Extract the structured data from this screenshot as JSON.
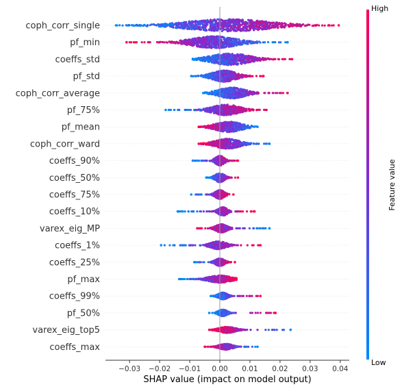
{
  "chart_data": {
    "type": "scatter",
    "subtype": "shap-beeswarm-summary",
    "xlabel": "SHAP value (impact on model output)",
    "xlim": [
      -0.038,
      0.043
    ],
    "xticks": [
      -0.03,
      -0.02,
      -0.01,
      0.0,
      0.01,
      0.02,
      0.03,
      0.04
    ],
    "xtick_labels": [
      "−0.03",
      "−0.02",
      "−0.01",
      "0.00",
      "0.01",
      "0.02",
      "0.03",
      "0.04"
    ],
    "features": [
      {
        "name": "coph_corr_single",
        "min": -0.0345,
        "max": 0.0395,
        "dense_low": -0.016,
        "dense_high": 0.021,
        "trend": "positive"
      },
      {
        "name": "pf_min",
        "min": -0.031,
        "max": 0.0225,
        "dense_low": -0.012,
        "dense_high": 0.008,
        "trend": "negative"
      },
      {
        "name": "coeffs_std",
        "min": -0.009,
        "max": 0.024,
        "dense_low": -0.005,
        "dense_high": 0.012,
        "trend": "positive"
      },
      {
        "name": "pf_std",
        "min": -0.0095,
        "max": 0.0145,
        "dense_low": -0.004,
        "dense_high": 0.007,
        "trend": "positive"
      },
      {
        "name": "coph_corr_average",
        "min": -0.0055,
        "max": 0.0225,
        "dense_low": -0.002,
        "dense_high": 0.01,
        "trend": "positive"
      },
      {
        "name": "pf_75%",
        "min": -0.018,
        "max": 0.0155,
        "dense_low": -0.004,
        "dense_high": 0.008,
        "trend": "positive"
      },
      {
        "name": "pf_mean",
        "min": -0.007,
        "max": 0.0125,
        "dense_low": -0.003,
        "dense_high": 0.009,
        "trend": "negative"
      },
      {
        "name": "coph_corr_ward",
        "min": -0.007,
        "max": 0.0165,
        "dense_low": -0.003,
        "dense_high": 0.008,
        "trend": "negative"
      },
      {
        "name": "coeffs_90%",
        "min": -0.009,
        "max": 0.006,
        "dense_low": -0.002,
        "dense_high": 0.002,
        "trend": "positive"
      },
      {
        "name": "coeffs_50%",
        "min": -0.0045,
        "max": 0.006,
        "dense_low": -0.002,
        "dense_high": 0.002,
        "trend": "positive"
      },
      {
        "name": "coeffs_75%",
        "min": -0.0095,
        "max": 0.0045,
        "dense_low": -0.002,
        "dense_high": 0.002,
        "trend": "positive"
      },
      {
        "name": "coeffs_10%",
        "min": -0.014,
        "max": 0.0115,
        "dense_low": -0.001,
        "dense_high": 0.003,
        "trend": "positive"
      },
      {
        "name": "varex_eig_MP",
        "min": -0.0075,
        "max": 0.0165,
        "dense_low": -0.002,
        "dense_high": 0.003,
        "trend": "negative"
      },
      {
        "name": "coeffs_1%",
        "min": -0.0195,
        "max": 0.0135,
        "dense_low": -0.004,
        "dense_high": 0.003,
        "trend": "positive"
      },
      {
        "name": "coeffs_25%",
        "min": -0.0085,
        "max": 0.005,
        "dense_low": -0.002,
        "dense_high": 0.002,
        "trend": "positive"
      },
      {
        "name": "pf_max",
        "min": -0.0135,
        "max": 0.0055,
        "dense_low": -0.005,
        "dense_high": 0.005,
        "trend": "positive"
      },
      {
        "name": "coeffs_99%",
        "min": -0.003,
        "max": 0.0135,
        "dense_low": -0.001,
        "dense_high": 0.003,
        "trend": "positive"
      },
      {
        "name": "pf_50%",
        "min": -0.0035,
        "max": 0.0185,
        "dense_low": -0.001,
        "dense_high": 0.003,
        "trend": "positive"
      },
      {
        "name": "varex_eig_top5",
        "min": -0.0035,
        "max": 0.0235,
        "dense_low": -0.001,
        "dense_high": 0.006,
        "trend": "negative"
      },
      {
        "name": "coeffs_max",
        "min": -0.005,
        "max": 0.0125,
        "dense_low": -0.001,
        "dense_high": 0.005,
        "trend": "negative"
      }
    ],
    "colorbar": {
      "title": "Feature value",
      "high_label": "High",
      "low_label": "Low",
      "high_color": "#ff0052",
      "mid_color": "#7a2fd9",
      "low_color": "#008bfb"
    },
    "zero_line": true,
    "grid": false
  }
}
